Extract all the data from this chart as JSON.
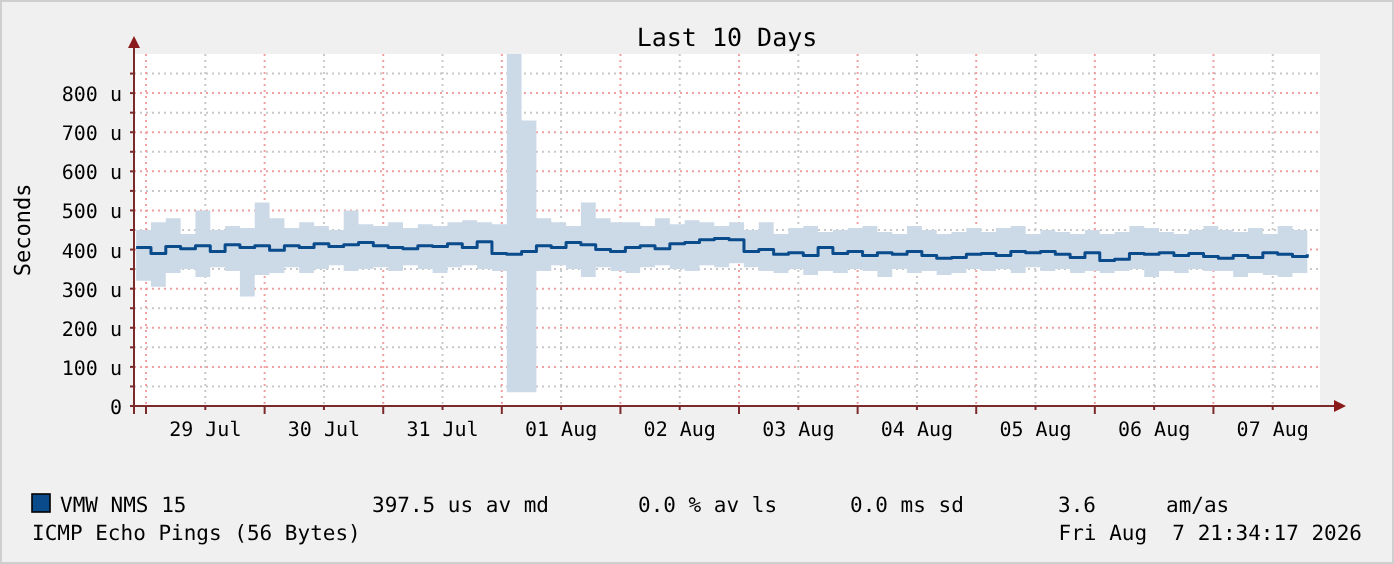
{
  "chart_data": {
    "type": "step",
    "title": "Last 10 Days",
    "ylabel": "Seconds",
    "annotations": [
      "397.5 us av md",
      "0.0 % av ls",
      "0.0 ms sd",
      "3.6",
      "am/as",
      "ICMP Echo Pings (56 Bytes)",
      "Fri Aug  7 21:34:17 2026"
    ],
    "x": [
      "2026-07-28T22:00",
      "2026-07-29T01:00",
      "2026-07-29T04:00",
      "2026-07-29T07:00",
      "2026-07-29T10:00",
      "2026-07-29T13:00",
      "2026-07-29T16:00",
      "2026-07-29T19:00",
      "2026-07-29T22:00",
      "2026-07-30T01:00",
      "2026-07-30T04:00",
      "2026-07-30T07:00",
      "2026-07-30T10:00",
      "2026-07-30T13:00",
      "2026-07-30T16:00",
      "2026-07-30T19:00",
      "2026-07-30T22:00",
      "2026-07-31T01:00",
      "2026-07-31T04:00",
      "2026-07-31T07:00",
      "2026-07-31T10:00",
      "2026-07-31T13:00",
      "2026-07-31T16:00",
      "2026-07-31T19:00",
      "2026-07-31T22:00",
      "2026-08-01T01:00",
      "2026-08-01T04:00",
      "2026-08-01T07:00",
      "2026-08-01T10:00",
      "2026-08-01T13:00",
      "2026-08-01T16:00",
      "2026-08-01T19:00",
      "2026-08-01T22:00",
      "2026-08-02T01:00",
      "2026-08-02T04:00",
      "2026-08-02T07:00",
      "2026-08-02T10:00",
      "2026-08-02T13:00",
      "2026-08-02T16:00",
      "2026-08-02T19:00",
      "2026-08-02T22:00",
      "2026-08-03T01:00",
      "2026-08-03T04:00",
      "2026-08-03T07:00",
      "2026-08-03T10:00",
      "2026-08-03T13:00",
      "2026-08-03T16:00",
      "2026-08-03T19:00",
      "2026-08-03T22:00",
      "2026-08-04T01:00",
      "2026-08-04T04:00",
      "2026-08-04T07:00",
      "2026-08-04T10:00",
      "2026-08-04T13:00",
      "2026-08-04T16:00",
      "2026-08-04T19:00",
      "2026-08-04T22:00",
      "2026-08-05T01:00",
      "2026-08-05T04:00",
      "2026-08-05T07:00",
      "2026-08-05T10:00",
      "2026-08-05T13:00",
      "2026-08-05T16:00",
      "2026-08-05T19:00",
      "2026-08-05T22:00",
      "2026-08-06T01:00",
      "2026-08-06T04:00",
      "2026-08-06T07:00",
      "2026-08-06T10:00",
      "2026-08-06T13:00",
      "2026-08-06T16:00",
      "2026-08-06T19:00",
      "2026-08-06T22:00",
      "2026-08-07T01:00",
      "2026-08-07T04:00",
      "2026-08-07T07:00",
      "2026-08-07T10:00",
      "2026-08-07T13:00",
      "2026-08-07T16:00",
      "2026-08-07T19:00"
    ],
    "series": [
      {
        "name": "VMW NMS 15",
        "color": "#0a4b8c",
        "values": [
          405,
          390,
          408,
          402,
          410,
          395,
          412,
          405,
          410,
          398,
          410,
          405,
          415,
          408,
          412,
          418,
          410,
          405,
          402,
          410,
          408,
          415,
          405,
          420,
          390,
          388,
          395,
          410,
          405,
          418,
          412,
          400,
          395,
          405,
          410,
          402,
          415,
          418,
          425,
          428,
          425,
          395,
          400,
          388,
          392,
          385,
          405,
          390,
          395,
          385,
          392,
          388,
          395,
          385,
          378,
          380,
          388,
          390,
          385,
          395,
          392,
          395,
          388,
          380,
          392,
          372,
          375,
          390,
          388,
          392,
          385,
          390,
          382,
          378,
          385,
          380,
          392,
          388,
          382,
          388
        ],
        "lower": [
          320,
          305,
          340,
          350,
          330,
          355,
          345,
          280,
          335,
          340,
          355,
          340,
          350,
          360,
          345,
          350,
          355,
          345,
          360,
          350,
          340,
          355,
          360,
          350,
          345,
          35,
          35,
          345,
          360,
          350,
          330,
          355,
          345,
          340,
          355,
          360,
          350,
          345,
          360,
          355,
          365,
          355,
          345,
          340,
          350,
          335,
          345,
          340,
          350,
          345,
          330,
          350,
          340,
          345,
          335,
          340,
          350,
          345,
          350,
          340,
          355,
          345,
          350,
          340,
          345,
          340,
          345,
          350,
          330,
          345,
          340,
          350,
          345,
          345,
          330,
          340,
          335,
          330,
          340,
          345
        ],
        "upper": [
          450,
          470,
          480,
          440,
          500,
          450,
          460,
          455,
          520,
          480,
          455,
          470,
          460,
          450,
          500,
          465,
          460,
          470,
          455,
          465,
          460,
          470,
          475,
          470,
          465,
          900,
          730,
          480,
          470,
          460,
          520,
          480,
          470,
          470,
          460,
          480,
          465,
          475,
          470,
          460,
          470,
          450,
          470,
          440,
          455,
          460,
          445,
          450,
          455,
          460,
          445,
          440,
          460,
          450,
          440,
          445,
          455,
          445,
          455,
          460,
          440,
          450,
          445,
          440,
          450,
          440,
          445,
          460,
          455,
          445,
          440,
          450,
          460,
          450,
          445,
          455,
          440,
          460,
          450,
          455
        ]
      }
    ],
    "xlim": [
      "2026-07-28T21:34",
      "2026-08-07T21:34"
    ],
    "xticks": [
      {
        "value": "2026-07-29T00:00",
        "label": null
      },
      {
        "value": "2026-07-29T12:00",
        "label": "29 Jul"
      },
      {
        "value": "2026-07-30T00:00",
        "label": null
      },
      {
        "value": "2026-07-30T12:00",
        "label": "30 Jul"
      },
      {
        "value": "2026-07-31T00:00",
        "label": null
      },
      {
        "value": "2026-07-31T12:00",
        "label": "31 Jul"
      },
      {
        "value": "2026-08-01T00:00",
        "label": null
      },
      {
        "value": "2026-08-01T12:00",
        "label": "01 Aug"
      },
      {
        "value": "2026-08-02T00:00",
        "label": null
      },
      {
        "value": "2026-08-02T12:00",
        "label": "02 Aug"
      },
      {
        "value": "2026-08-03T00:00",
        "label": null
      },
      {
        "value": "2026-08-03T12:00",
        "label": "03 Aug"
      },
      {
        "value": "2026-08-04T00:00",
        "label": null
      },
      {
        "value": "2026-08-04T12:00",
        "label": "04 Aug"
      },
      {
        "value": "2026-08-05T00:00",
        "label": null
      },
      {
        "value": "2026-08-05T12:00",
        "label": "05 Aug"
      },
      {
        "value": "2026-08-06T00:00",
        "label": null
      },
      {
        "value": "2026-08-06T12:00",
        "label": "06 Aug"
      },
      {
        "value": "2026-08-07T00:00",
        "label": null
      },
      {
        "value": "2026-08-07T12:00",
        "label": "07 Aug"
      }
    ],
    "ylim": [
      0,
      900
    ],
    "yticks": [
      0,
      {
        "value": 50,
        "label": null
      },
      {
        "value": 100,
        "label": "100 u"
      },
      {
        "value": 150,
        "label": null
      },
      {
        "value": 200,
        "label": "200 u"
      },
      {
        "value": 250,
        "label": null
      },
      {
        "value": 300,
        "label": "300 u"
      },
      {
        "value": 350,
        "label": null
      },
      {
        "value": 400,
        "label": "400 u"
      },
      {
        "value": 450,
        "label": null
      },
      {
        "value": 500,
        "label": "500 u"
      },
      {
        "value": 550,
        "label": null
      },
      {
        "value": 600,
        "label": "600 u"
      },
      {
        "value": 650,
        "label": null
      },
      {
        "value": 700,
        "label": "700 u"
      },
      {
        "value": 750,
        "label": null
      },
      {
        "value": 800,
        "label": "800 u"
      },
      {
        "value": 850,
        "label": null
      }
    ],
    "grid": true,
    "legend": "bottom",
    "line_style": "solid",
    "marker": "none"
  }
}
